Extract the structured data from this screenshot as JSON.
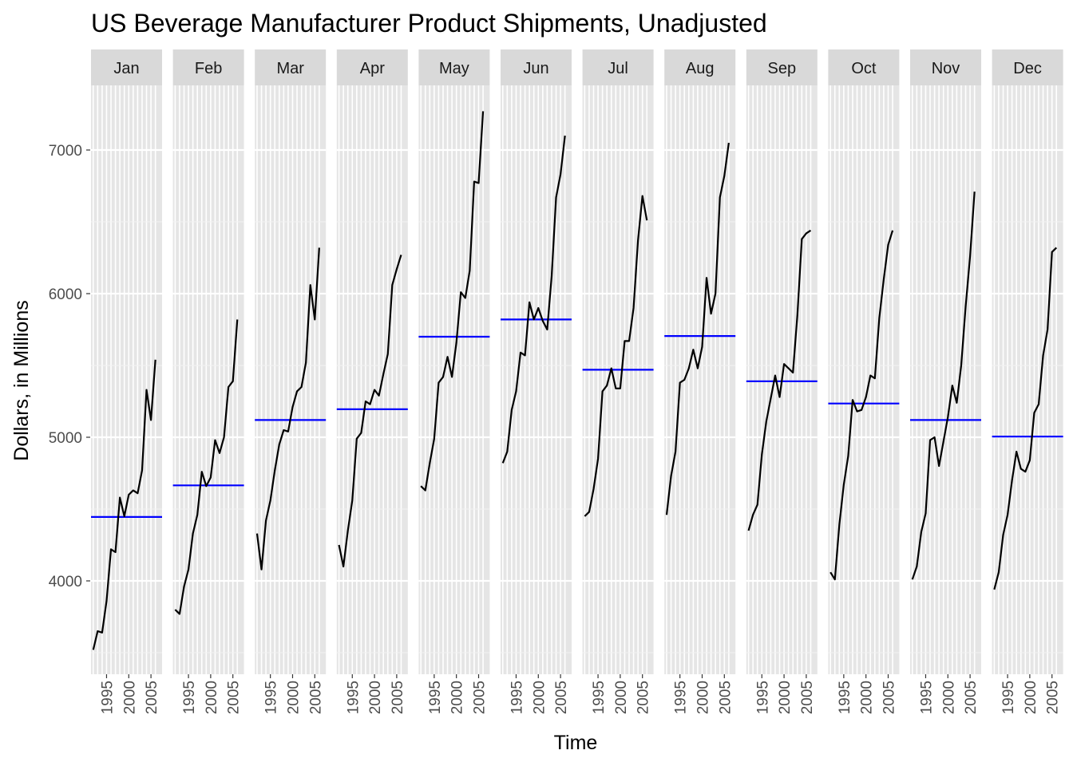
{
  "chart_data": {
    "type": "line",
    "title": "US Beverage Manufacturer Product Shipments, Unadjusted",
    "xlabel": "Time",
    "ylabel": "Dollars, in Millions",
    "ylim": [
      3350,
      7450
    ],
    "xlim": [
      1991.5,
      2007.5
    ],
    "y_ticks": [
      4000,
      5000,
      6000,
      7000
    ],
    "x_ticks": [
      1995,
      2000,
      2005
    ],
    "x_tick_labels": [
      "1995",
      "2000",
      "2005"
    ],
    "years": [
      1992,
      1993,
      1994,
      1995,
      1996,
      1997,
      1998,
      1999,
      2000,
      2001,
      2002,
      2003,
      2004,
      2005,
      2006
    ],
    "mean_line_color": "#0000ff",
    "series_line_color": "#000000",
    "panel_background": "#e5e5e5",
    "strip_background": "#d9d9d9",
    "panels": [
      {
        "month": "Jan",
        "mean": 4445,
        "values": [
          3520,
          3650,
          3640,
          3860,
          4220,
          4200,
          4580,
          4450,
          4600,
          4630,
          4610,
          4770,
          5330,
          5120,
          5540
        ]
      },
      {
        "month": "Feb",
        "mean": 4665,
        "values": [
          3800,
          3770,
          3960,
          4080,
          4330,
          4460,
          4760,
          4660,
          4720,
          4980,
          4890,
          5000,
          5350,
          5390,
          5820
        ]
      },
      {
        "month": "Mar",
        "mean": 5120,
        "values": [
          4330,
          4080,
          4420,
          4560,
          4770,
          4950,
          5050,
          5040,
          5210,
          5320,
          5350,
          5520,
          6060,
          5820,
          6320
        ]
      },
      {
        "month": "Apr",
        "mean": 5195,
        "values": [
          4250,
          4100,
          4350,
          4560,
          4990,
          5030,
          5250,
          5230,
          5330,
          5290,
          5440,
          5580,
          6060,
          6170,
          6270
        ]
      },
      {
        "month": "May",
        "mean": 5700,
        "values": [
          4660,
          4630,
          4820,
          4990,
          5380,
          5420,
          5560,
          5420,
          5660,
          6010,
          5970,
          6160,
          6780,
          6770,
          7270
        ]
      },
      {
        "month": "Jun",
        "mean": 5820,
        "values": [
          4820,
          4900,
          5190,
          5320,
          5590,
          5570,
          5940,
          5820,
          5900,
          5810,
          5750,
          6120,
          6670,
          6830,
          7100
        ]
      },
      {
        "month": "Jul",
        "mean": 5470,
        "values": [
          4450,
          4480,
          4640,
          4850,
          5320,
          5360,
          5480,
          5340,
          5340,
          5670,
          5670,
          5900,
          6370,
          6680,
          6510
        ]
      },
      {
        "month": "Aug",
        "mean": 5705,
        "values": [
          4460,
          4730,
          4900,
          5380,
          5400,
          5480,
          5610,
          5480,
          5630,
          6110,
          5860,
          6000,
          6670,
          6820,
          7050
        ]
      },
      {
        "month": "Sep",
        "mean": 5390,
        "values": [
          4350,
          4460,
          4530,
          4880,
          5110,
          5270,
          5430,
          5280,
          5510,
          5480,
          5450,
          5850,
          6380,
          6420,
          6440
        ]
      },
      {
        "month": "Oct",
        "mean": 5235,
        "values": [
          4060,
          4010,
          4390,
          4670,
          4870,
          5260,
          5180,
          5190,
          5280,
          5430,
          5410,
          5830,
          6100,
          6340,
          6440
        ]
      },
      {
        "month": "Nov",
        "mean": 5120,
        "values": [
          4010,
          4100,
          4340,
          4470,
          4980,
          5000,
          4800,
          4970,
          5140,
          5360,
          5240,
          5500,
          5910,
          6260,
          6710
        ]
      },
      {
        "month": "Dec",
        "mean": 5005,
        "values": [
          3940,
          4060,
          4320,
          4460,
          4700,
          4900,
          4780,
          4760,
          4840,
          5170,
          5230,
          5570,
          5750,
          6290,
          6320
        ]
      }
    ]
  }
}
